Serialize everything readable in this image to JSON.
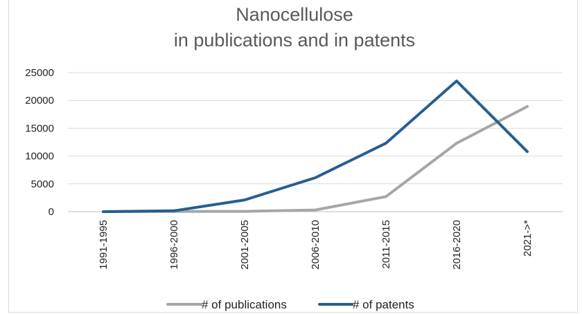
{
  "chart_data": {
    "type": "line",
    "title_lines": [
      "Nanocellulose",
      "in publications and in patents"
    ],
    "categories": [
      "1991-1995",
      "1996-2000",
      "2001-2005",
      "2006-2010",
      "2011-2015",
      "2016-2020",
      "2021->*"
    ],
    "ylim": [
      0,
      25000
    ],
    "yticks": [
      "0",
      "5000",
      "10000",
      "15000",
      "20000",
      "25000"
    ],
    "grid": true,
    "legend_position": "bottom",
    "series": [
      {
        "name": "# of publications",
        "color": "#a6a6a6",
        "values": [
          0,
          20,
          50,
          300,
          2700,
          12300,
          18900
        ]
      },
      {
        "name": "# of patents",
        "color": "#255e91",
        "values": [
          0,
          150,
          2100,
          6100,
          12300,
          23500,
          10800
        ]
      }
    ]
  }
}
